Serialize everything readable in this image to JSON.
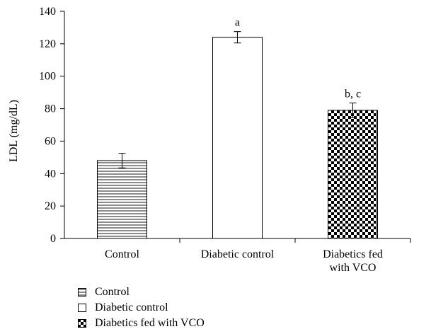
{
  "chart_data": {
    "type": "bar",
    "title": "",
    "xlabel": "",
    "ylabel": "LDL (mg/dL)",
    "ylim": [
      0,
      140
    ],
    "yticks": [
      0,
      20,
      40,
      60,
      80,
      100,
      120,
      140
    ],
    "categories": [
      "Control",
      "Diabetic control",
      "Diabetics fed with VCO"
    ],
    "category_lines": [
      [
        "Control"
      ],
      [
        "Diabetic control"
      ],
      [
        "Diabetics fed",
        "with VCO"
      ]
    ],
    "values": [
      48,
      124,
      79
    ],
    "errors": [
      4.5,
      3.5,
      4.5
    ],
    "annotations": [
      "",
      "a",
      "b, c"
    ],
    "patterns": [
      "horizontal-lines",
      "none",
      "checker"
    ],
    "grid": false,
    "legend": "bottom-left"
  },
  "legend": {
    "items": [
      {
        "label": "Control",
        "pattern": "horizontal-lines"
      },
      {
        "label": "Diabetic control",
        "pattern": "none"
      },
      {
        "label": "Diabetics fed with VCO",
        "pattern": "checker"
      }
    ]
  }
}
